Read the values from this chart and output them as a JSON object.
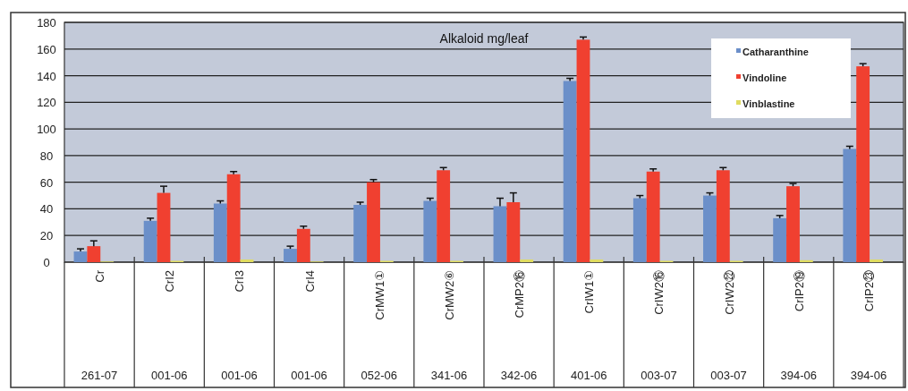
{
  "chart_data": {
    "type": "bar",
    "title": "Alkaloid mg/leaf",
    "categories": [
      "Cr\n261-07",
      "CrI2\n001-06",
      "CrI3\n001-06",
      "CrI4\n001-06",
      "CrMW1①\n052-06",
      "CrMW2⑥\n341-06",
      "CrMP2⑯\n342-06",
      "CrIW1①\n401-06",
      "CrIW2⑯\n003-07",
      "CrIW2㉒\n003-07",
      "CrIP2⑲\n394-06",
      "CrIP2㉓\n394-06"
    ],
    "series": [
      {
        "name": "Catharanthine",
        "color": "#6b8fc9",
        "values": [
          8,
          31,
          44,
          10,
          43,
          46,
          42,
          136,
          48,
          50,
          33,
          85
        ],
        "errors": [
          [
            8,
            10
          ],
          [
            31,
            33
          ],
          [
            44,
            46
          ],
          [
            10,
            12
          ],
          [
            43,
            45
          ],
          [
            46,
            48
          ],
          [
            42,
            48
          ],
          [
            136,
            138
          ],
          [
            48,
            50
          ],
          [
            50,
            52
          ],
          [
            33,
            35
          ],
          [
            85,
            87
          ]
        ]
      },
      {
        "name": "Vindoline",
        "color": "#f04030",
        "values": [
          12,
          52,
          66,
          25,
          60,
          69,
          45,
          167,
          68,
          69,
          57,
          147
        ],
        "errors": [
          [
            12,
            16
          ],
          [
            52,
            57
          ],
          [
            66,
            68
          ],
          [
            25,
            27
          ],
          [
            60,
            62
          ],
          [
            69,
            71
          ],
          [
            45,
            52
          ],
          [
            167,
            169
          ],
          [
            68,
            70
          ],
          [
            69,
            71
          ],
          [
            57,
            59
          ],
          [
            147,
            149
          ]
        ]
      },
      {
        "name": "Vinblastine",
        "color": "#e0dc60",
        "values": [
          0.5,
          1,
          2,
          0.5,
          1,
          1,
          2,
          2,
          1,
          1,
          1.5,
          2
        ]
      }
    ],
    "ylim": [
      0,
      180
    ],
    "yticks": [
      0,
      20,
      40,
      60,
      80,
      100,
      120,
      140,
      160,
      180
    ],
    "grid": "y",
    "legend": "top right"
  }
}
